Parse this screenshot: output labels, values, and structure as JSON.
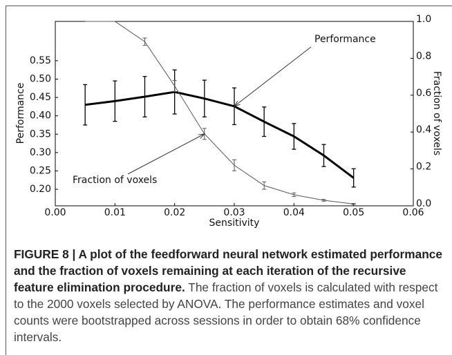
{
  "chart_data": {
    "type": "line",
    "x_label": "Sensitivity",
    "y_label": "Performance",
    "y2_label": "Fraction of voxels",
    "x": [
      0.005,
      0.01,
      0.015,
      0.02,
      0.025,
      0.03,
      0.035,
      0.04,
      0.045,
      0.05
    ],
    "series": [
      {
        "name": "Performance",
        "color": "#000000",
        "values": [
          0.43,
          0.44,
          0.452,
          0.465,
          0.447,
          0.426,
          0.384,
          0.344,
          0.292,
          0.231
        ],
        "errors": [
          0.055,
          0.055,
          0.055,
          0.06,
          0.05,
          0.05,
          0.04,
          0.035,
          0.03,
          0.025
        ]
      },
      {
        "name": "Fraction of voxels",
        "axis": "y2",
        "color": "#555555",
        "values": [
          1.0,
          1.0,
          0.89,
          0.65,
          0.39,
          0.22,
          0.11,
          0.06,
          0.03,
          0.01
        ],
        "errors": [
          null,
          null,
          0.02,
          0.03,
          0.03,
          0.03,
          0.02,
          0.01,
          0.005,
          0.003
        ]
      }
    ],
    "xlim": [
      0,
      0.06
    ],
    "xticks": [
      {
        "value": 0,
        "label": "0.00"
      },
      {
        "value": 0.01,
        "label": "0.01"
      },
      {
        "value": 0.02,
        "label": "0.02"
      },
      {
        "value": 0.03,
        "label": "0.03"
      },
      {
        "value": 0.04,
        "label": "0.04"
      },
      {
        "value": 0.05,
        "label": "0.05"
      },
      {
        "value": 0.06,
        "label": "0.06"
      }
    ],
    "ylim": [
      0.155,
      0.657
    ],
    "yticks": [
      {
        "value": 0.2,
        "label": "0.20"
      },
      0.25,
      {
        "value": 0.3,
        "label": "0.30"
      },
      0.35,
      {
        "value": 0.4,
        "label": "0.40"
      },
      0.45,
      {
        "value": 0.5,
        "label": "0.50"
      },
      0.55
    ],
    "y2lim": [
      0,
      1
    ],
    "y2ticks": [
      {
        "value": 0,
        "label": "0.0"
      },
      0.2,
      0.4,
      0.6,
      0.8,
      {
        "value": 1,
        "label": "1.0"
      }
    ],
    "annotations": [
      "Performance",
      "Fraction of voxels"
    ]
  },
  "caption": {
    "bold_text": "FIGURE 8 | A plot of the feedforward neural network estimated performance and the fraction of voxels remaining at each iteration of the recursive feature elimination procedure.",
    "text": "The fraction of voxels is calculated with respect to the 2000 voxels selected by ANOVA. The performance estimates and voxel counts were bootstrapped across sessions in order to obtain 68% confidence intervals."
  }
}
